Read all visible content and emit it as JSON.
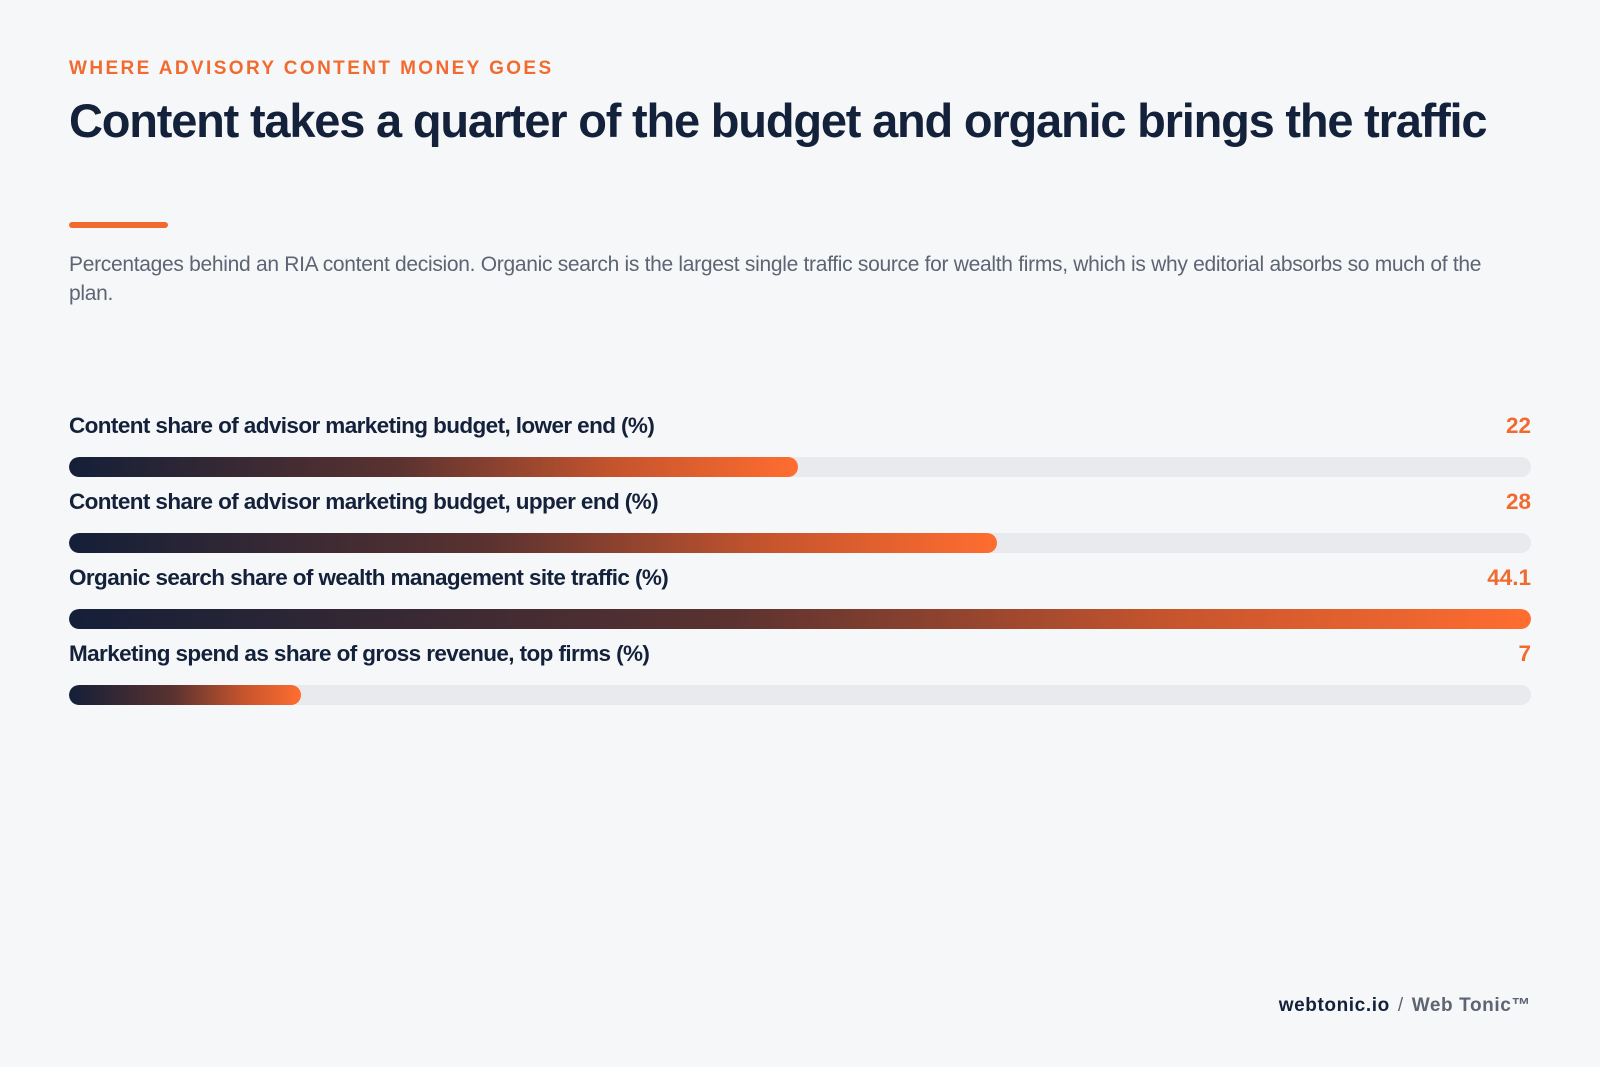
{
  "header": {
    "eyebrow": "WHERE ADVISORY CONTENT MONEY GOES",
    "title": "Content takes a quarter of the budget and organic brings the traffic",
    "subtitle": "Percentages behind an RIA content decision. Organic search is the largest single traffic source for wealth firms, which is why editorial absorbs so much of the plan."
  },
  "chart_data": {
    "type": "bar",
    "orientation": "horizontal",
    "categories": [
      "Content share of advisor marketing budget, lower end (%)",
      "Content share of advisor marketing budget, upper end (%)",
      "Organic search share of wealth management site traffic (%)",
      "Marketing spend as share of gross revenue, top firms (%)"
    ],
    "values": [
      22,
      28,
      44.1,
      7
    ],
    "value_labels": [
      "22",
      "28",
      "44.1",
      "7"
    ],
    "xlim": [
      0,
      44.1
    ],
    "grid": false,
    "colors": {
      "bar_start": "#141f38",
      "bar_end": "#ff6d30",
      "track": "#e8eaee",
      "value_text": "#f26b2e"
    }
  },
  "footer": {
    "domain": "webtonic.io",
    "separator": "/",
    "brand": "Web Tonic™"
  }
}
